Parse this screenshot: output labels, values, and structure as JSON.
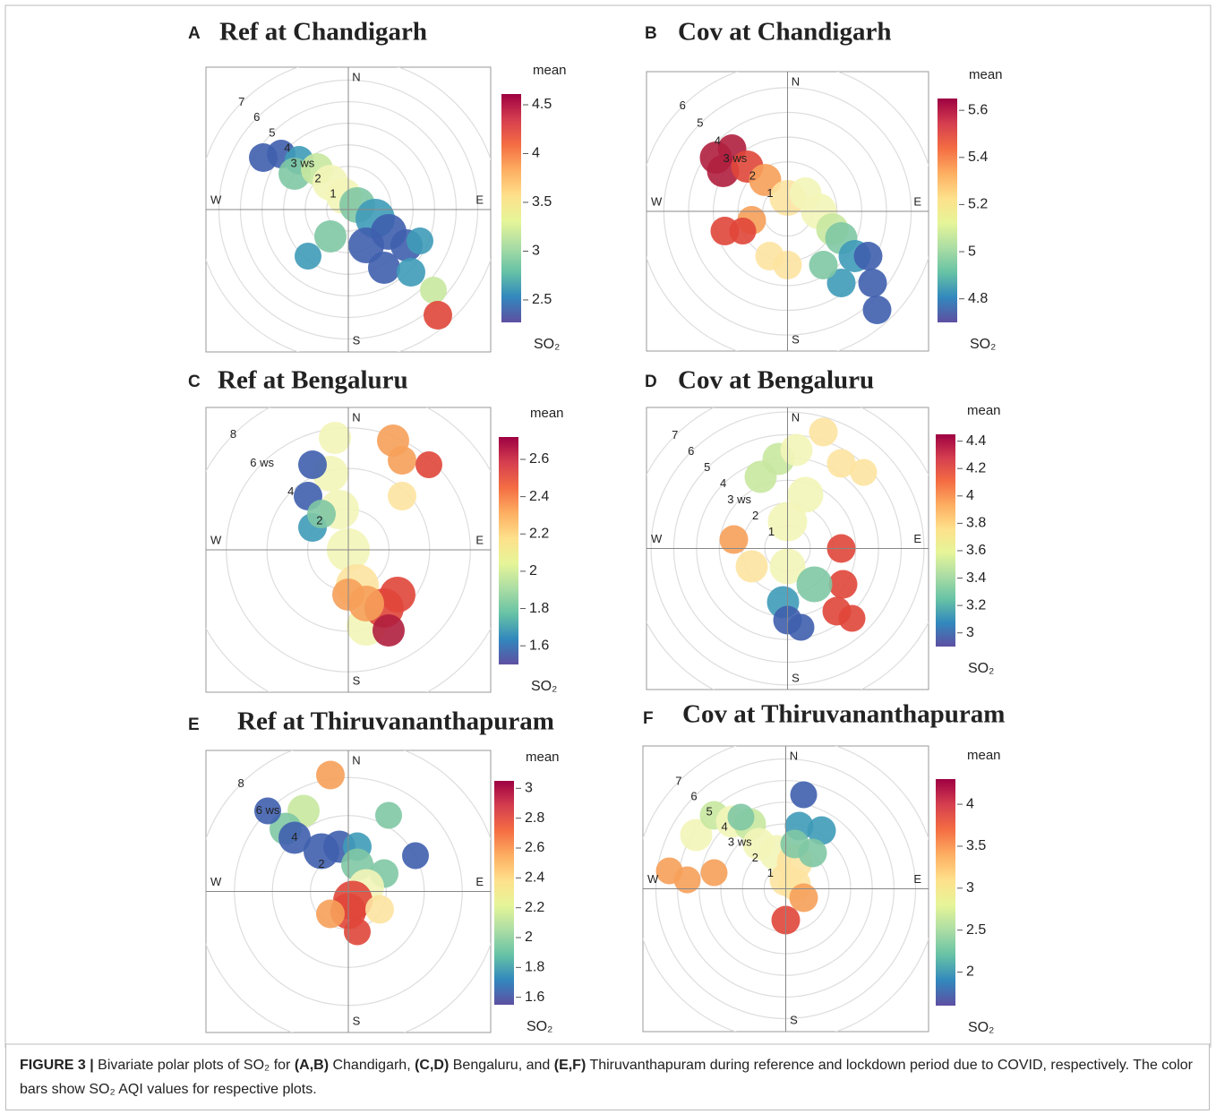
{
  "chart_data": [
    {
      "type": "polar",
      "panel": "A",
      "title": "Ref at Chandigarh",
      "compass": [
        "N",
        "E",
        "S",
        "W"
      ],
      "rlim": [
        0,
        6.6
      ],
      "rticks": [
        1,
        2,
        {
          "value": 3,
          "label": "3 ws"
        },
        4,
        5,
        6,
        7
      ],
      "colorbar_title": "mean",
      "colorbar_label": "SO₂",
      "clim": [
        2.27,
        4.61
      ],
      "cticks": [
        2.5,
        3,
        3.5,
        4,
        4.5
      ],
      "colorscale": [
        "#5e4fa2",
        "#3288bd",
        "#66c2a5",
        "#abdda4",
        "#e6f598",
        "#fee08b",
        "#fdae61",
        "#f46d43",
        "#d53e4f",
        "#9e0142"
      ]
    },
    {
      "type": "polar",
      "panel": "B",
      "title": "Cov at Chandigarh",
      "compass": [
        "N",
        "E",
        "S",
        "W"
      ],
      "rlim": [
        0,
        5.7
      ],
      "rticks": [
        1,
        2,
        {
          "value": 3,
          "label": "3 ws"
        },
        4,
        5,
        6
      ],
      "colorbar_title": "mean",
      "colorbar_label": "SO₂",
      "clim": [
        4.7,
        5.65
      ],
      "cticks": [
        4.8,
        5,
        5.2,
        5.4,
        5.6
      ],
      "colorscale": [
        "#5e4fa2",
        "#3288bd",
        "#66c2a5",
        "#abdda4",
        "#e6f598",
        "#fee08b",
        "#fdae61",
        "#f46d43",
        "#d53e4f",
        "#9e0142"
      ]
    },
    {
      "type": "polar",
      "panel": "C",
      "title": "Ref at Bengaluru",
      "compass": [
        "N",
        "E",
        "S",
        "W"
      ],
      "rlim": [
        0,
        7
      ],
      "rticks": [
        2,
        4,
        {
          "value": 6,
          "label": "6 ws"
        },
        8
      ],
      "colorbar_title": "mean",
      "colorbar_label": "SO₂",
      "clim": [
        1.5,
        2.72
      ],
      "cticks": [
        1.6,
        1.8,
        2,
        2.2,
        2.4,
        2.6
      ],
      "colorscale": [
        "#5e4fa2",
        "#3288bd",
        "#66c2a5",
        "#abdda4",
        "#e6f598",
        "#fee08b",
        "#fdae61",
        "#f46d43",
        "#d53e4f",
        "#9e0142"
      ]
    },
    {
      "type": "polar",
      "panel": "D",
      "title": "Cov at Bengaluru",
      "compass": [
        "N",
        "E",
        "S",
        "W"
      ],
      "rlim": [
        0,
        6.2
      ],
      "rticks": [
        1,
        2,
        {
          "value": 3,
          "label": "3 ws"
        },
        4,
        5,
        6,
        7
      ],
      "colorbar_title": "mean",
      "colorbar_label": "SO₂",
      "clim": [
        2.9,
        4.45
      ],
      "cticks": [
        3,
        3.2,
        3.4,
        3.6,
        3.8,
        4,
        4.2,
        4.4
      ],
      "colorscale": [
        "#5e4fa2",
        "#3288bd",
        "#66c2a5",
        "#abdda4",
        "#e6f598",
        "#fee08b",
        "#fdae61",
        "#f46d43",
        "#d53e4f",
        "#9e0142"
      ]
    },
    {
      "type": "polar",
      "panel": "E",
      "title": "Ref at Thiruvananthapuram",
      "compass": [
        "N",
        "E",
        "S",
        "W"
      ],
      "rlim": [
        0,
        7.5
      ],
      "rticks": [
        2,
        4,
        {
          "value": 6,
          "label": "6 ws"
        },
        8
      ],
      "colorbar_title": "mean",
      "colorbar_label": "SO₂",
      "clim": [
        1.55,
        3.05
      ],
      "cticks": [
        1.6,
        1.8,
        2,
        2.2,
        2.4,
        2.6,
        2.8,
        3
      ],
      "colorscale": [
        "#5e4fa2",
        "#3288bd",
        "#66c2a5",
        "#abdda4",
        "#e6f598",
        "#fee08b",
        "#fdae61",
        "#f46d43",
        "#d53e4f",
        "#9e0142"
      ]
    },
    {
      "type": "polar",
      "panel": "F",
      "title": "Cov at Thiruvananthapuram",
      "compass": [
        "N",
        "E",
        "S",
        "W"
      ],
      "rlim": [
        0,
        6.6
      ],
      "rticks": [
        1,
        2,
        {
          "value": 3,
          "label": "3 ws"
        },
        4,
        5,
        6,
        7
      ],
      "colorbar_title": "mean",
      "colorbar_label": "SO₂",
      "clim": [
        1.6,
        4.3
      ],
      "cticks": [
        2,
        2.5,
        3,
        3.5,
        4
      ],
      "colorscale": [
        "#5e4fa2",
        "#3288bd",
        "#66c2a5",
        "#abdda4",
        "#e6f598",
        "#fee08b",
        "#fdae61",
        "#f46d43",
        "#d53e4f",
        "#9e0142"
      ]
    }
  ],
  "caption": [
    "FIGURE 3 |",
    " Bivariate polar plots of SO₂ for ",
    "(A,B)",
    " Chandigarh, ",
    "(C,D)",
    " Bengaluru, and ",
    "(E,F)",
    " Thiruvanthapuram during reference and lockdown period due to COVID, respectively. The color bars show SO₂ AQI values for respective plots."
  ]
}
